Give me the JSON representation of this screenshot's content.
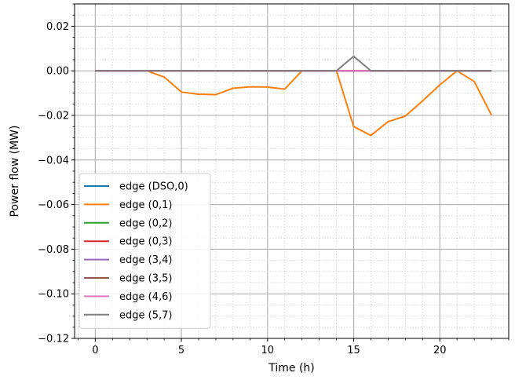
{
  "chart_data": {
    "type": "line",
    "xlabel": "Time (h)",
    "ylabel": "Power flow (MW)",
    "xlim": [
      -1.2,
      24.0
    ],
    "ylim": [
      -0.12,
      0.03
    ],
    "xticks": [
      0,
      5,
      10,
      15,
      20
    ],
    "xtick_labels": [
      "0",
      "5",
      "10",
      "15",
      "20"
    ],
    "yticks": [
      0.02,
      0.0,
      -0.02,
      -0.04,
      -0.06,
      -0.08,
      -0.1,
      -0.12
    ],
    "ytick_labels": [
      "0.02",
      "0.00",
      "−0.02",
      "−0.04",
      "−0.06",
      "−0.08",
      "−0.10",
      "−0.12"
    ],
    "grid": "major and minor",
    "legend_position": "lower-left",
    "x": [
      0,
      1,
      2,
      3,
      4,
      5,
      6,
      7,
      8,
      9,
      10,
      11,
      12,
      13,
      14,
      15,
      16,
      17,
      18,
      19,
      20,
      21,
      22,
      23
    ],
    "series": [
      {
        "name": "edge (DSO,0)",
        "color": "#1f77b4",
        "values": [
          0,
          0,
          0,
          0,
          0,
          0,
          0,
          0,
          0,
          0,
          0,
          0,
          0,
          0,
          0,
          0,
          0,
          0,
          0,
          0,
          0,
          0,
          0,
          0
        ]
      },
      {
        "name": "edge (0,1)",
        "color": "#ff7f0e",
        "values": [
          0,
          0,
          0,
          0,
          -0.0028,
          -0.0095,
          -0.0105,
          -0.0107,
          -0.0078,
          -0.0072,
          -0.0073,
          -0.0082,
          0,
          0,
          0,
          -0.025,
          -0.029,
          -0.0228,
          -0.0203,
          -0.0135,
          -0.0063,
          0,
          -0.0048,
          -0.0199
        ]
      },
      {
        "name": "edge (0,2)",
        "color": "#2ca02c",
        "values": [
          0,
          0,
          0,
          0,
          0,
          0,
          0,
          0,
          0,
          0,
          0,
          0,
          0,
          0,
          0,
          0,
          0,
          0,
          0,
          0,
          0,
          0,
          0,
          0
        ]
      },
      {
        "name": "edge (0,3)",
        "color": "#d62728",
        "values": [
          0,
          0,
          0,
          0,
          0,
          0,
          0,
          0,
          0,
          0,
          0,
          0,
          0,
          0,
          0,
          0,
          0,
          0,
          0,
          0,
          0,
          0,
          0,
          0
        ]
      },
      {
        "name": "edge (3,4)",
        "color": "#9467bd",
        "values": [
          0,
          0,
          0,
          0,
          0,
          0,
          0,
          0,
          0,
          0,
          0,
          0,
          0,
          0,
          0,
          0,
          0,
          0,
          0,
          0,
          0,
          0,
          0,
          0
        ]
      },
      {
        "name": "edge (3,5)",
        "color": "#8c564b",
        "values": [
          0,
          0,
          0,
          0,
          0,
          0,
          0,
          0,
          0,
          0,
          0,
          0,
          0,
          0,
          0,
          0,
          0,
          0,
          0,
          0,
          0,
          0,
          0,
          0
        ]
      },
      {
        "name": "edge (4,6)",
        "color": "#e377c2",
        "values": [
          0,
          0,
          0,
          0,
          0,
          0,
          0,
          0,
          0,
          0,
          0,
          0,
          0,
          0,
          0,
          0,
          0,
          0,
          0,
          0,
          0,
          0,
          0,
          0
        ]
      },
      {
        "name": "edge (5,7)",
        "color": "#7f7f7f",
        "values": [
          0,
          0,
          0,
          0,
          0,
          0,
          0,
          0,
          0,
          0,
          0,
          0,
          0,
          0,
          0,
          0.0065,
          0,
          0,
          0,
          0,
          0,
          0,
          0,
          0
        ]
      }
    ]
  }
}
